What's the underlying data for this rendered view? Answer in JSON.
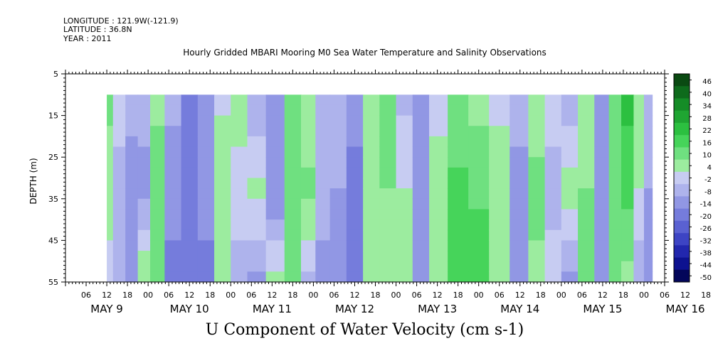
{
  "header": {
    "longitude": "LONGITUDE : 121.9W(-121.9)",
    "latitude": "LATITUDE : 36.8N",
    "year": "YEAR : 2011",
    "title": "Hourly Gridded MBARI Mooring M0 Sea Water Temperature and Salinity Observations"
  },
  "chart_data": {
    "type": "heatmap",
    "title": "Hourly Gridded MBARI Mooring M0 Sea Water Temperature and Salinity Observations",
    "subtitle": "U Component of Water Velocity (cm s-1)",
    "ylabel": "DEPTH (m)",
    "y_ticks": [
      5,
      15,
      25,
      35,
      45,
      55
    ],
    "ylim": [
      55,
      5
    ],
    "data_depth_range": [
      10,
      55
    ],
    "x_hour_ticks": [
      "06",
      "12",
      "18",
      "00",
      "06",
      "12",
      "18",
      "00",
      "06",
      "12",
      "18",
      "00",
      "06",
      "12",
      "18",
      "00",
      "06",
      "12",
      "18",
      "00",
      "06",
      "12",
      "18",
      "00",
      "06",
      "12",
      "18",
      "00",
      "06",
      "12",
      "18",
      "00"
    ],
    "x_day_labels": [
      "MAY  9",
      "MAY 10",
      "MAY 11",
      "MAY 12",
      "MAY 13",
      "MAY 14",
      "MAY 15",
      "MAY 16"
    ],
    "x_start": "2011-05-09 00:00",
    "data_start": "2011-05-09 12:00",
    "colorbar": {
      "labels": [
        "46",
        "40",
        "34",
        "28",
        "22",
        "16",
        "10",
        "4",
        "-2",
        "-8",
        "-14",
        "-20",
        "-26",
        "-32",
        "-38",
        "-44",
        "-50"
      ],
      "colors": [
        "#0a4a12",
        "#0e6b1c",
        "#158c27",
        "#1fa532",
        "#2cc040",
        "#46d45a",
        "#6fe080",
        "#9cec9f",
        "#c7ccf2",
        "#aeb3ec",
        "#9197e4",
        "#757cdc",
        "#5a61d2",
        "#3d44c4",
        "#2227ae",
        "#0d1290",
        "#03065a"
      ]
    },
    "u_profile_columns": [
      {
        "day": 9.5,
        "top": 12,
        "mid": 6,
        "bottom": 2
      },
      {
        "day": 9.65,
        "top": 4,
        "mid": -8,
        "bottom": -6
      },
      {
        "day": 9.8,
        "top": -4,
        "mid": -14,
        "bottom": -12
      },
      {
        "day": 9.95,
        "top": -6,
        "mid": -10,
        "bottom": 10
      },
      {
        "day": 10.1,
        "top": 8,
        "mid": 14,
        "bottom": 12
      },
      {
        "day": 10.3,
        "top": -6,
        "mid": -12,
        "bottom": -16
      },
      {
        "day": 10.5,
        "top": -16,
        "mid": -18,
        "bottom": -20
      },
      {
        "day": 10.7,
        "top": -10,
        "mid": -8,
        "bottom": -18
      },
      {
        "day": 10.9,
        "top": 2,
        "mid": 10,
        "bottom": 4
      },
      {
        "day": 11.1,
        "top": 6,
        "mid": 2,
        "bottom": -6
      },
      {
        "day": 11.3,
        "top": -8,
        "mid": 6,
        "bottom": -10
      },
      {
        "day": 11.55,
        "top": -12,
        "mid": -14,
        "bottom": 6
      },
      {
        "day": 11.75,
        "top": 10,
        "mid": 16,
        "bottom": 12
      },
      {
        "day": 11.95,
        "top": 4,
        "mid": 12,
        "bottom": -4
      },
      {
        "day": 12.1,
        "top": -8,
        "mid": -6,
        "bottom": -10
      },
      {
        "day": 12.3,
        "top": -6,
        "mid": -8,
        "bottom": -14
      },
      {
        "day": 12.5,
        "top": -12,
        "mid": -16,
        "bottom": -18
      },
      {
        "day": 12.7,
        "top": 6,
        "mid": 4,
        "bottom": 8
      },
      {
        "day": 12.9,
        "top": 12,
        "mid": 10,
        "bottom": 6
      },
      {
        "day": 13.1,
        "top": -4,
        "mid": 4,
        "bottom": 10
      },
      {
        "day": 13.3,
        "top": -10,
        "mid": -12,
        "bottom": -8
      },
      {
        "day": 13.5,
        "top": 2,
        "mid": 6,
        "bottom": 4
      },
      {
        "day": 13.75,
        "top": 10,
        "mid": 18,
        "bottom": 20
      },
      {
        "day": 14.0,
        "top": 8,
        "mid": 14,
        "bottom": 22
      },
      {
        "day": 14.25,
        "top": 2,
        "mid": 8,
        "bottom": 4
      },
      {
        "day": 14.5,
        "top": -6,
        "mid": -10,
        "bottom": -12
      },
      {
        "day": 14.7,
        "top": 6,
        "mid": 12,
        "bottom": 8
      },
      {
        "day": 14.9,
        "top": 4,
        "mid": -6,
        "bottom": 2
      },
      {
        "day": 15.1,
        "top": -8,
        "mid": 8,
        "bottom": -10
      },
      {
        "day": 15.3,
        "top": 8,
        "mid": 10,
        "bottom": 14
      },
      {
        "day": 15.5,
        "top": -10,
        "mid": -12,
        "bottom": -8
      },
      {
        "day": 15.65,
        "top": 16,
        "mid": 12,
        "bottom": 10
      },
      {
        "day": 15.8,
        "top": 24,
        "mid": 18,
        "bottom": 8
      },
      {
        "day": 15.95,
        "top": 10,
        "mid": 4,
        "bottom": -8
      },
      {
        "day": 16.05,
        "top": -6,
        "mid": -8,
        "bottom": -12
      }
    ]
  }
}
